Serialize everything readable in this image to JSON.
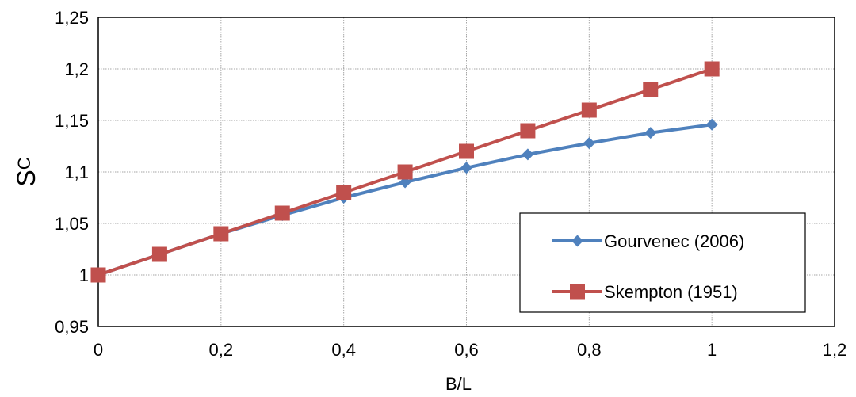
{
  "chart_data": {
    "type": "line",
    "x": [
      0,
      0.1,
      0.2,
      0.3,
      0.4,
      0.5,
      0.6,
      0.7,
      0.8,
      0.9,
      1
    ],
    "series": [
      {
        "name": "Gourvenec (2006)",
        "values": [
          1.0,
          1.02,
          1.04,
          1.058,
          1.075,
          1.09,
          1.104,
          1.117,
          1.128,
          1.138,
          1.146
        ],
        "color": "#4F81BD",
        "marker": "diamond"
      },
      {
        "name": "Skempton (1951)",
        "values": [
          1.0,
          1.02,
          1.04,
          1.06,
          1.08,
          1.1,
          1.12,
          1.14,
          1.16,
          1.18,
          1.2
        ],
        "color": "#C0504D",
        "marker": "square"
      }
    ],
    "xlabel": "B/L",
    "ylabel_main": "S",
    "ylabel_sub": "C",
    "xlim": [
      0,
      1.2
    ],
    "ylim": [
      0.95,
      1.25
    ],
    "x_ticks": [
      0,
      0.2,
      0.4,
      0.6,
      0.8,
      1,
      1.2
    ],
    "x_tick_labels": [
      "0",
      "0,2",
      "0,4",
      "0,6",
      "0,8",
      "1",
      "1,2"
    ],
    "y_ticks": [
      0.95,
      1,
      1.05,
      1.1,
      1.15,
      1.2,
      1.25
    ],
    "y_tick_labels": [
      "0,95",
      "1",
      "1,05",
      "1,1",
      "1,15",
      "1,2",
      "1,25"
    ],
    "grid": true,
    "legend_position": "bottom-right"
  }
}
